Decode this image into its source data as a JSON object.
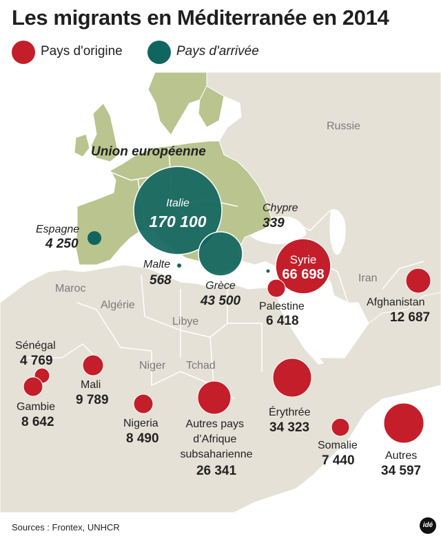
{
  "title": "Les migrants en Méditerranée en 2014",
  "legend": {
    "origin_label": "Pays d'origine",
    "arrival_label": "Pays d'arrivée",
    "origin_color": "#c41e2a",
    "arrival_color": "#11655f"
  },
  "map_labels": {
    "union": "Union européenne",
    "russie": "Russie",
    "maroc": "Maroc",
    "algerie": "Algérie",
    "libye": "Libye",
    "niger": "Niger",
    "tchad": "Tchad",
    "iran": "Iran"
  },
  "arrivals": [
    {
      "key": "italie",
      "name": "Italie",
      "value": "170 100"
    },
    {
      "key": "grece",
      "name": "Grèce",
      "value": "43 500"
    },
    {
      "key": "espagne",
      "name": "Espagne",
      "value": "4 250"
    },
    {
      "key": "malte",
      "name": "Malte",
      "value": "568"
    },
    {
      "key": "chypre",
      "name": "Chypre",
      "value": "339"
    }
  ],
  "origins": [
    {
      "key": "syrie",
      "name": "Syrie",
      "value": "66 698"
    },
    {
      "key": "palestine",
      "name": "Palestine",
      "value": "6 418"
    },
    {
      "key": "afghanistan",
      "name": "Afghanistan",
      "value": "12 687"
    },
    {
      "key": "senegal",
      "name": "Sénégal",
      "value": "4 769"
    },
    {
      "key": "gambie",
      "name": "Gambie",
      "value": "8 642"
    },
    {
      "key": "mali",
      "name": "Mali",
      "value": "9 789"
    },
    {
      "key": "nigeria",
      "name": "Nigeria",
      "value": "8 490"
    },
    {
      "key": "afrique",
      "name": "Autres pays d'Afrique subsaharienne",
      "value": "26 341"
    },
    {
      "key": "erythree",
      "name": "Érythrée",
      "value": "34 323"
    },
    {
      "key": "somalie",
      "name": "Somalie",
      "value": "7 440"
    },
    {
      "key": "autres",
      "name": "Autres",
      "value": "34 597"
    }
  ],
  "sources": "Sources : Frontex, UNHCR",
  "brand": "idé"
}
